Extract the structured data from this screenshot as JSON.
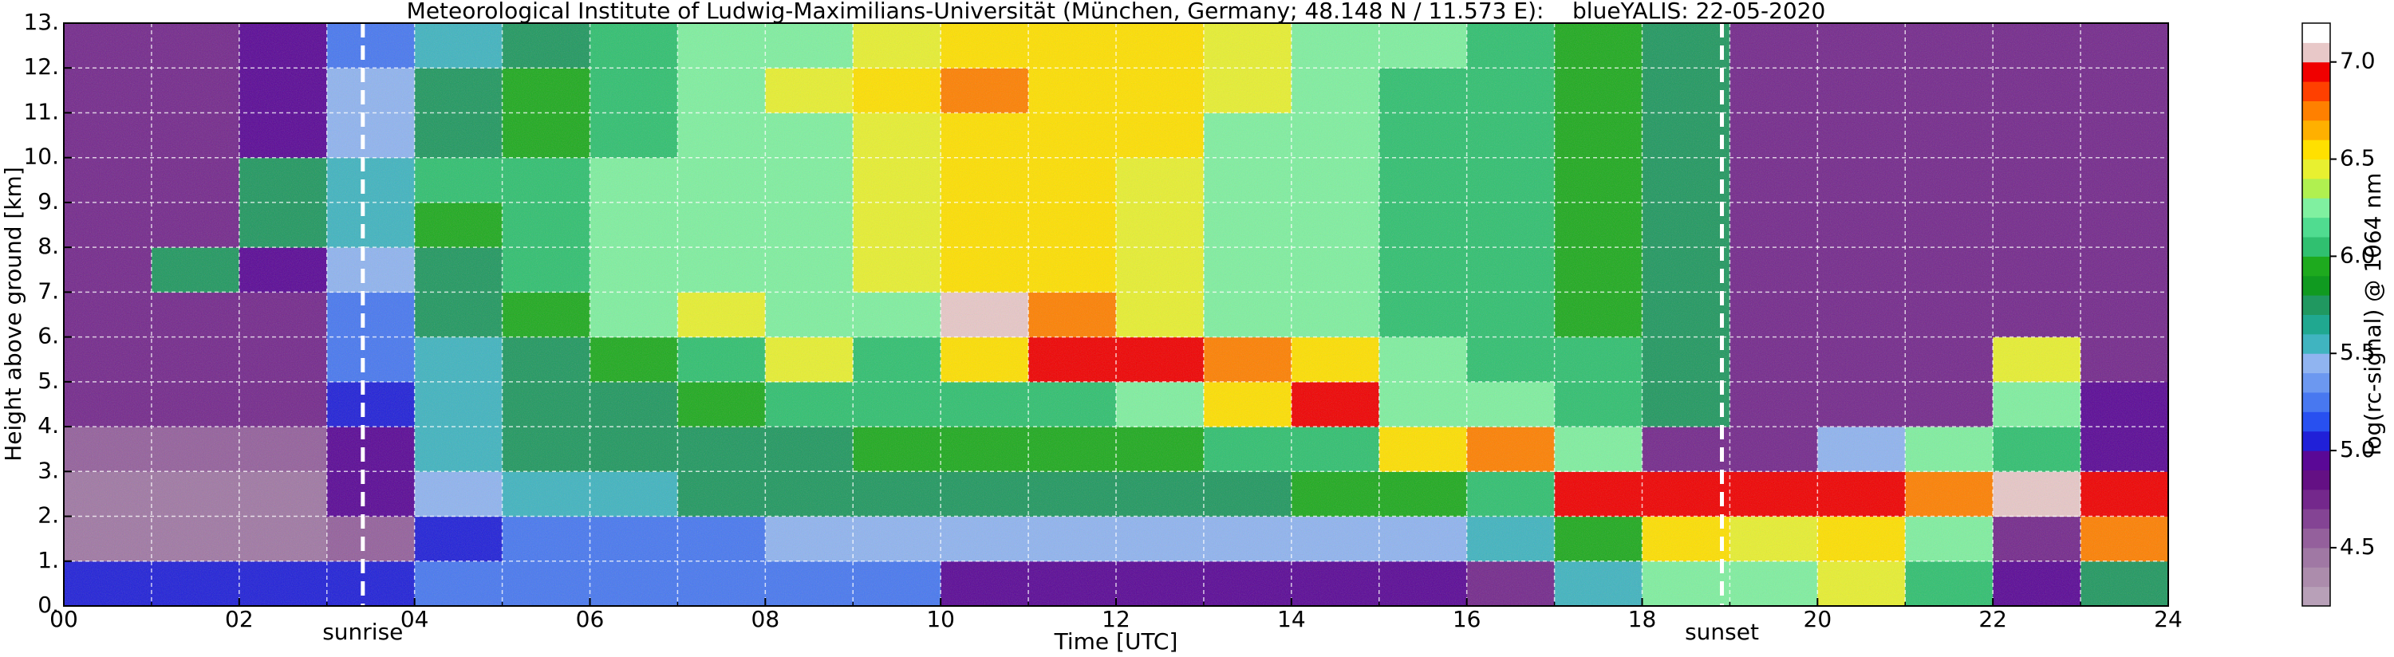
{
  "chart_data": {
    "type": "heatmap",
    "title": "Meteorological Institute of Ludwig-Maximilians-Universität (München, Germany; 48.148 N / 11.573 E):    blueYALIS: 22-05-2020",
    "xlabel": "Time [UTC]",
    "ylabel": "Height above ground [km]",
    "colorbar_label": "log(rc-signal) @ 1064 nm",
    "x": [
      0,
      1,
      2,
      3,
      4,
      5,
      6,
      7,
      8,
      9,
      10,
      11,
      12,
      13,
      14,
      15,
      16,
      17,
      18,
      19,
      20,
      21,
      22,
      23,
      24
    ],
    "y": [
      0,
      1,
      2,
      3,
      4,
      5,
      6,
      7,
      8,
      9,
      10,
      11,
      12,
      13
    ],
    "z": [
      [
        5.1,
        5.1,
        5.1,
        5.1,
        5.2,
        5.2,
        5.2,
        5.3,
        5.3,
        5.2,
        4.9,
        4.9,
        4.9,
        4.9,
        4.9,
        4.9,
        4.8,
        5.6,
        6.3,
        6.2,
        6.4,
        6.1,
        4.9,
        5.8
      ],
      [
        4.4,
        4.4,
        4.5,
        4.6,
        5.1,
        5.2,
        5.3,
        5.3,
        5.4,
        5.4,
        5.4,
        5.5,
        5.5,
        5.5,
        5.5,
        5.5,
        5.6,
        5.9,
        6.6,
        6.4,
        6.6,
        6.3,
        4.8,
        6.7
      ],
      [
        4.4,
        4.4,
        4.5,
        4.9,
        5.5,
        5.6,
        5.6,
        5.7,
        5.7,
        5.8,
        5.8,
        5.8,
        5.8,
        5.8,
        5.9,
        5.9,
        6.0,
        6.9,
        7.0,
        6.9,
        6.9,
        6.8,
        7.1,
        6.9
      ],
      [
        4.6,
        4.6,
        4.6,
        5.0,
        5.6,
        5.7,
        5.7,
        5.8,
        5.8,
        5.9,
        5.9,
        5.9,
        5.9,
        6.0,
        6.1,
        6.5,
        6.8,
        6.2,
        4.8,
        4.8,
        5.5,
        6.2,
        6.0,
        4.9
      ],
      [
        4.7,
        4.7,
        4.7,
        5.1,
        5.6,
        5.7,
        5.8,
        5.9,
        6.0,
        6.0,
        6.0,
        6.1,
        6.3,
        6.6,
        6.9,
        6.3,
        6.2,
        6.1,
        5.8,
        4.8,
        4.8,
        4.8,
        6.3,
        4.9
      ],
      [
        4.8,
        4.8,
        4.8,
        5.2,
        5.6,
        5.8,
        5.9,
        6.1,
        6.4,
        6.1,
        6.6,
        6.9,
        7.0,
        6.8,
        6.5,
        6.3,
        6.1,
        6.0,
        5.8,
        4.8,
        4.8,
        4.8,
        6.4,
        4.8
      ],
      [
        4.8,
        4.8,
        4.8,
        5.3,
        5.7,
        5.9,
        6.2,
        6.4,
        6.2,
        6.2,
        7.1,
        6.8,
        6.4,
        6.3,
        6.2,
        6.1,
        6.0,
        5.9,
        5.8,
        4.8,
        4.8,
        4.8,
        4.8,
        4.8
      ],
      [
        4.8,
        5.7,
        4.9,
        5.4,
        5.8,
        6.1,
        6.2,
        6.3,
        6.3,
        6.4,
        6.6,
        6.5,
        6.4,
        6.3,
        6.2,
        6.1,
        6.0,
        5.9,
        5.8,
        4.8,
        4.8,
        4.8,
        4.8,
        4.8
      ],
      [
        4.8,
        4.8,
        5.7,
        5.6,
        5.9,
        6.1,
        6.2,
        6.3,
        6.3,
        6.4,
        6.6,
        6.6,
        6.4,
        6.3,
        6.2,
        6.1,
        6.0,
        5.9,
        5.8,
        4.8,
        4.8,
        4.8,
        4.8,
        4.8
      ],
      [
        4.8,
        4.8,
        5.8,
        5.6,
        6.0,
        6.0,
        6.2,
        6.3,
        6.3,
        6.4,
        6.6,
        6.6,
        6.4,
        6.3,
        6.2,
        6.1,
        6.0,
        5.9,
        5.8,
        4.8,
        4.8,
        4.8,
        4.8,
        4.8
      ],
      [
        4.8,
        4.8,
        4.9,
        5.4,
        5.7,
        5.9,
        6.1,
        6.3,
        6.3,
        6.4,
        6.6,
        6.6,
        6.5,
        6.3,
        6.2,
        6.1,
        6.0,
        5.9,
        5.8,
        4.8,
        4.8,
        4.8,
        4.8,
        4.8
      ],
      [
        4.8,
        4.8,
        4.9,
        5.4,
        5.7,
        5.9,
        6.1,
        6.3,
        6.4,
        6.5,
        6.7,
        6.6,
        6.5,
        6.4,
        6.2,
        6.1,
        6.0,
        5.9,
        5.7,
        4.8,
        4.8,
        4.8,
        4.8,
        4.8
      ],
      [
        4.8,
        4.8,
        4.9,
        5.3,
        5.6,
        5.8,
        6.0,
        6.2,
        6.3,
        6.4,
        6.6,
        6.6,
        6.5,
        6.4,
        6.3,
        6.2,
        6.0,
        5.9,
        5.7,
        4.8,
        4.8,
        4.8,
        4.8,
        4.8
      ]
    ],
    "xlim": [
      0,
      24
    ],
    "ylim": [
      0,
      13
    ],
    "xticks": [
      {
        "value": 0,
        "label": "00"
      },
      {
        "value": 2,
        "label": "02"
      },
      {
        "value": 4,
        "label": "04"
      },
      {
        "value": 6,
        "label": "06"
      },
      {
        "value": 8,
        "label": "08"
      },
      10,
      12,
      14,
      16,
      18,
      20,
      22,
      24
    ],
    "xminor": [
      1,
      3,
      5,
      7,
      9,
      11,
      13,
      15,
      17,
      19,
      21,
      23
    ],
    "yticks": [
      {
        "value": 0,
        "label": "0."
      },
      {
        "value": 1,
        "label": "1."
      },
      {
        "value": 2,
        "label": "2."
      },
      {
        "value": 3,
        "label": "3."
      },
      {
        "value": 4,
        "label": "4."
      },
      {
        "value": 5,
        "label": "5."
      },
      {
        "value": 6,
        "label": "6."
      },
      {
        "value": 7,
        "label": "7."
      },
      {
        "value": 8,
        "label": "8."
      },
      {
        "value": 9,
        "label": "9."
      },
      {
        "value": 10,
        "label": "10."
      },
      {
        "value": 11,
        "label": "11."
      },
      {
        "value": 12,
        "label": "12."
      },
      {
        "value": 13,
        "label": "13."
      }
    ],
    "clim": [
      4.2,
      7.2
    ],
    "cticks": [
      4.5,
      {
        "value": 5,
        "label": "5.0"
      },
      5.5,
      {
        "value": 6,
        "label": "6.0"
      },
      6.5,
      {
        "value": 7,
        "label": "7.0"
      }
    ],
    "colormap": [
      "#b8a0b8",
      "#ac8cac",
      "#a078a4",
      "#94609c",
      "#844494",
      "#74288c",
      "#641084",
      "#5a0896",
      "#2020d8",
      "#2850f0",
      "#4878f0",
      "#6c98f0",
      "#90b4f0",
      "#40b4c0",
      "#20a890",
      "#209860",
      "#109a20",
      "#1eaa1e",
      "#30c070",
      "#50dc90",
      "#80f0a0",
      "#b0f050",
      "#e8f030",
      "#ffe000",
      "#ffb000",
      "#ff8000",
      "#ff4000",
      "#f00000",
      "#e8c8c8",
      "#ffffff"
    ],
    "grid": true,
    "annotations": [
      {
        "x": 3.41,
        "label": "sunrise"
      },
      {
        "x": 18.91,
        "label": "sunset"
      }
    ]
  }
}
